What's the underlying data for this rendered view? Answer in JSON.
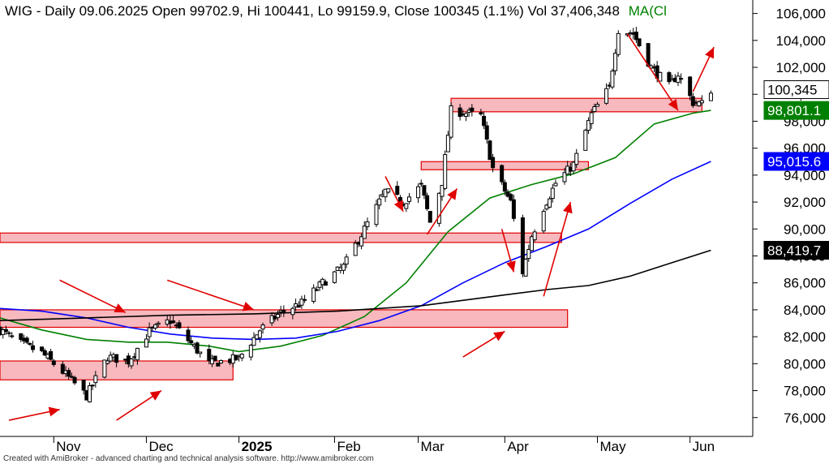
{
  "header": {
    "text": "WIG - Daily 09.06.2025 Open 99702.9, Hi 100441, Lo 99159.9, Close 100345 (1.1%) Vol 37,406,348",
    "ma_label": "MA(Cl"
  },
  "footer": "Created with AmiBroker - advanced charting and technical analysis software. http://www.amibroker.com",
  "colors": {
    "up": "#ffffff",
    "down": "#000000",
    "outline": "#000000",
    "ma_green": "#008000",
    "ma_blue": "#0000ff",
    "ma_black": "#000000",
    "zone_fill": "#f4a0a8",
    "zone_stroke": "#e00000",
    "arrow": "#e00000"
  },
  "chart_data": {
    "type": "candlestick",
    "ylim": [
      74600,
      107000
    ],
    "yticks": [
      76000,
      78000,
      80000,
      82000,
      84000,
      86000,
      88000,
      90000,
      92000,
      94000,
      96000,
      98000,
      100000,
      102000,
      104000,
      106000
    ],
    "ytick_labels": [
      "76,000",
      "78,000",
      "80,000",
      "82,000",
      "84,000",
      "86,000",
      "88,000",
      "90,000",
      "92,000",
      "94,000",
      "96,000",
      "98,000",
      "100,000",
      "102,000",
      "104,000",
      "106,000"
    ],
    "xlim": [
      "2024-10-14",
      "2025-06-23"
    ],
    "month_ticks": [
      {
        "date": "2024-11-01",
        "label": "Nov",
        "major": false
      },
      {
        "date": "2024-12-02",
        "label": "Dec",
        "major": false
      },
      {
        "date": "2025-01-02",
        "label": "2025",
        "major": true
      },
      {
        "date": "2025-02-03",
        "label": "Feb",
        "major": false
      },
      {
        "date": "2025-03-03",
        "label": "Mar",
        "major": false
      },
      {
        "date": "2025-04-01",
        "label": "Apr",
        "major": false
      },
      {
        "date": "2025-05-02",
        "label": "May",
        "major": false
      },
      {
        "date": "2025-06-02",
        "label": "Jun",
        "major": false
      }
    ],
    "price_tags": [
      {
        "value": 100345,
        "label": "100,345",
        "bg": "#ffffff",
        "fg": "#000000"
      },
      {
        "value": 98801.1,
        "label": "98,801.1",
        "bg": "#008000",
        "fg": "#ffffff"
      },
      {
        "value": 95015.6,
        "label": "95,015.6",
        "bg": "#0000ff",
        "fg": "#ffffff"
      },
      {
        "value": 88419.7,
        "label": "88,419.7",
        "bg": "#000000",
        "fg": "#ffffff"
      }
    ],
    "close_anchors": [
      [
        "2024-10-14",
        82500
      ],
      [
        "2024-10-21",
        81500
      ],
      [
        "2024-10-28",
        80800
      ],
      [
        "2024-11-05",
        79200
      ],
      [
        "2024-11-12",
        77600
      ],
      [
        "2024-11-19",
        80500
      ],
      [
        "2024-11-26",
        80200
      ],
      [
        "2024-12-03",
        82400
      ],
      [
        "2024-12-10",
        83200
      ],
      [
        "2024-12-17",
        81500
      ],
      [
        "2024-12-23",
        80000
      ],
      [
        "2025-01-02",
        80400
      ],
      [
        "2025-01-09",
        82500
      ],
      [
        "2025-01-16",
        83800
      ],
      [
        "2025-01-23",
        84500
      ],
      [
        "2025-01-30",
        86000
      ],
      [
        "2025-02-06",
        87200
      ],
      [
        "2025-02-13",
        90000
      ],
      [
        "2025-02-20",
        92800
      ],
      [
        "2025-02-26",
        92000
      ],
      [
        "2025-03-04",
        93200
      ],
      [
        "2025-03-07",
        90500
      ],
      [
        "2025-03-11",
        93500
      ],
      [
        "2025-03-14",
        98800
      ],
      [
        "2025-03-19",
        98600
      ],
      [
        "2025-03-24",
        98400
      ],
      [
        "2025-03-28",
        94500
      ],
      [
        "2025-04-03",
        92000
      ],
      [
        "2025-04-07",
        86800
      ],
      [
        "2025-04-10",
        89500
      ],
      [
        "2025-04-14",
        91600
      ],
      [
        "2025-04-18",
        93400
      ],
      [
        "2025-04-24",
        94800
      ],
      [
        "2025-04-30",
        98500
      ],
      [
        "2025-05-06",
        100500
      ],
      [
        "2025-05-09",
        104800
      ],
      [
        "2025-05-14",
        104500
      ],
      [
        "2025-05-20",
        102000
      ],
      [
        "2025-05-26",
        100600
      ],
      [
        "2025-05-29",
        101500
      ],
      [
        "2025-06-03",
        99400
      ],
      [
        "2025-06-06",
        99300
      ],
      [
        "2025-06-09",
        100345
      ]
    ],
    "ma_series": [
      {
        "name": "MA short",
        "color": "#008000",
        "points": [
          [
            "2024-10-14",
            83400
          ],
          [
            "2024-10-28",
            82500
          ],
          [
            "2024-11-12",
            81800
          ],
          [
            "2024-11-26",
            81600
          ],
          [
            "2024-12-09",
            81600
          ],
          [
            "2024-12-23",
            81300
          ],
          [
            "2025-01-02",
            80900
          ],
          [
            "2025-01-16",
            81300
          ],
          [
            "2025-01-30",
            82100
          ],
          [
            "2025-02-13",
            83500
          ],
          [
            "2025-02-27",
            86000
          ],
          [
            "2025-03-13",
            89800
          ],
          [
            "2025-03-27",
            92300
          ],
          [
            "2025-04-10",
            93300
          ],
          [
            "2025-04-24",
            94100
          ],
          [
            "2025-05-08",
            95300
          ],
          [
            "2025-05-21",
            97800
          ],
          [
            "2025-06-03",
            98600
          ],
          [
            "2025-06-09",
            98801.1
          ]
        ]
      },
      {
        "name": "MA medium",
        "color": "#0000ff",
        "points": [
          [
            "2024-10-14",
            84100
          ],
          [
            "2024-10-28",
            83900
          ],
          [
            "2024-11-12",
            83400
          ],
          [
            "2024-11-26",
            82700
          ],
          [
            "2024-12-10",
            82200
          ],
          [
            "2024-12-24",
            81900
          ],
          [
            "2025-01-07",
            81800
          ],
          [
            "2025-01-21",
            81900
          ],
          [
            "2025-02-04",
            82400
          ],
          [
            "2025-02-18",
            83200
          ],
          [
            "2025-03-04",
            84300
          ],
          [
            "2025-03-18",
            86000
          ],
          [
            "2025-04-01",
            87500
          ],
          [
            "2025-04-15",
            88700
          ],
          [
            "2025-04-29",
            90000
          ],
          [
            "2025-05-13",
            91900
          ],
          [
            "2025-05-27",
            93700
          ],
          [
            "2025-06-09",
            95015.6
          ]
        ]
      },
      {
        "name": "MA long",
        "color": "#000000",
        "points": [
          [
            "2024-10-14",
            83200
          ],
          [
            "2024-11-12",
            83400
          ],
          [
            "2024-12-10",
            83600
          ],
          [
            "2025-01-07",
            83700
          ],
          [
            "2025-02-04",
            83900
          ],
          [
            "2025-03-04",
            84300
          ],
          [
            "2025-04-01",
            85100
          ],
          [
            "2025-04-15",
            85500
          ],
          [
            "2025-04-29",
            85800
          ],
          [
            "2025-05-13",
            86500
          ],
          [
            "2025-05-27",
            87500
          ],
          [
            "2025-06-09",
            88419.7
          ]
        ]
      }
    ],
    "annotations": {
      "zones": [
        {
          "from": "2024-10-14",
          "to": "2024-12-31",
          "low": 78800,
          "high": 80200
        },
        {
          "from": "2024-10-14",
          "to": "2025-04-22",
          "low": 82700,
          "high": 84000
        },
        {
          "from": "2024-10-14",
          "to": "2025-04-20",
          "low": 89000,
          "high": 89700
        },
        {
          "from": "2025-03-04",
          "to": "2025-04-29",
          "low": 94400,
          "high": 95000
        },
        {
          "from": "2025-03-14",
          "to": "2025-06-06",
          "low": 98700,
          "high": 99700
        }
      ],
      "arrows": [
        {
          "from": [
            "2024-10-17",
            75800
          ],
          "to": [
            "2024-11-03",
            76600
          ]
        },
        {
          "from": [
            "2024-11-22",
            75800
          ],
          "to": [
            "2024-12-07",
            78000
          ]
        },
        {
          "from": [
            "2024-11-03",
            86200
          ],
          "to": [
            "2024-11-25",
            83800
          ]
        },
        {
          "from": [
            "2024-12-09",
            86200
          ],
          "to": [
            "2025-01-07",
            84000
          ]
        },
        {
          "from": [
            "2025-03-18",
            80500
          ],
          "to": [
            "2025-04-01",
            82400
          ]
        },
        {
          "from": [
            "2025-02-20",
            93900
          ],
          "to": [
            "2025-02-26",
            91300
          ]
        },
        {
          "from": [
            "2025-03-06",
            89600
          ],
          "to": [
            "2025-03-16",
            93000
          ]
        },
        {
          "from": [
            "2025-03-31",
            90000
          ],
          "to": [
            "2025-04-04",
            86800
          ]
        },
        {
          "from": [
            "2025-04-14",
            85000
          ],
          "to": [
            "2025-04-23",
            92000
          ]
        },
        {
          "from": [
            "2025-05-12",
            104500
          ],
          "to": [
            "2025-05-29",
            98800
          ]
        },
        {
          "from": [
            "2025-06-03",
            100200
          ],
          "to": [
            "2025-06-10",
            103500
          ]
        }
      ]
    }
  }
}
